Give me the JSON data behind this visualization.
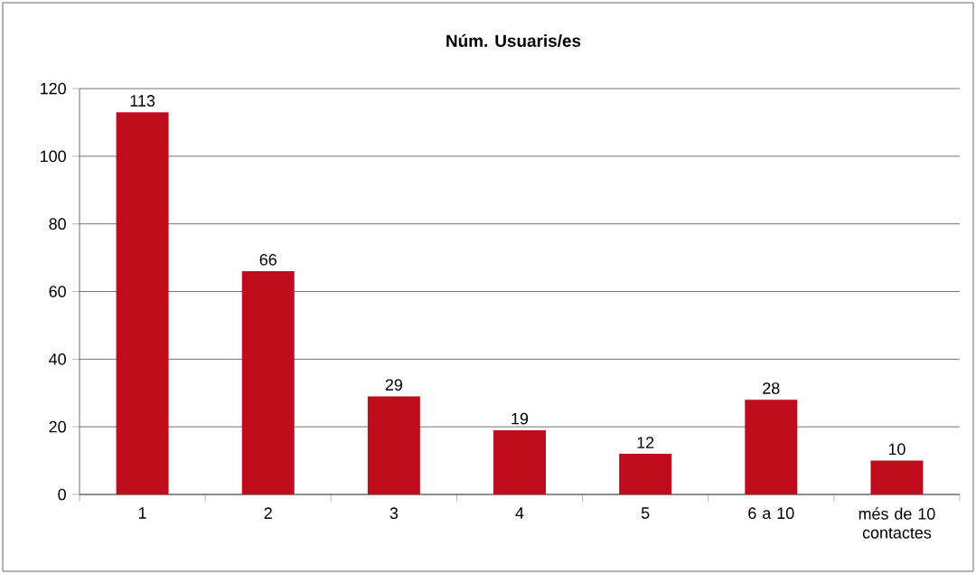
{
  "chart_data": {
    "type": "bar",
    "title": "Núm. Usuaris/es",
    "categories": [
      "1",
      "2",
      "3",
      "4",
      "5",
      "6 a 10",
      "més de 10 contactes"
    ],
    "values": [
      113,
      66,
      29,
      19,
      12,
      28,
      10
    ],
    "color": "#c00d1e",
    "ylim": [
      0,
      120
    ],
    "yticks": [
      0,
      20,
      40,
      60,
      80,
      100,
      120
    ],
    "grid": "y",
    "data_labels": true
  }
}
